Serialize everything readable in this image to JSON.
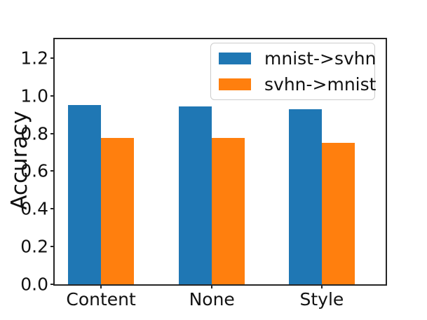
{
  "chart_data": {
    "type": "bar",
    "title": "",
    "xlabel": "",
    "ylabel": "Accuracy",
    "categories": [
      "Content",
      "None",
      "Style"
    ],
    "series": [
      {
        "name": "mnist->svhn",
        "color": "#1f77b4",
        "values": [
          0.95,
          0.944,
          0.93
        ]
      },
      {
        "name": "svhn->mnist",
        "color": "#ff7f0e",
        "values": [
          0.776,
          0.778,
          0.75
        ]
      }
    ],
    "ylim": [
      0,
      1.3
    ],
    "yticks": [
      0.0,
      0.2,
      0.4,
      0.6,
      0.8,
      1.0,
      1.2
    ],
    "ytick_format": "one_decimal",
    "legend_position": "upper right",
    "grid": false,
    "background_color": "#ffffff",
    "axis_color": "#262626"
  }
}
